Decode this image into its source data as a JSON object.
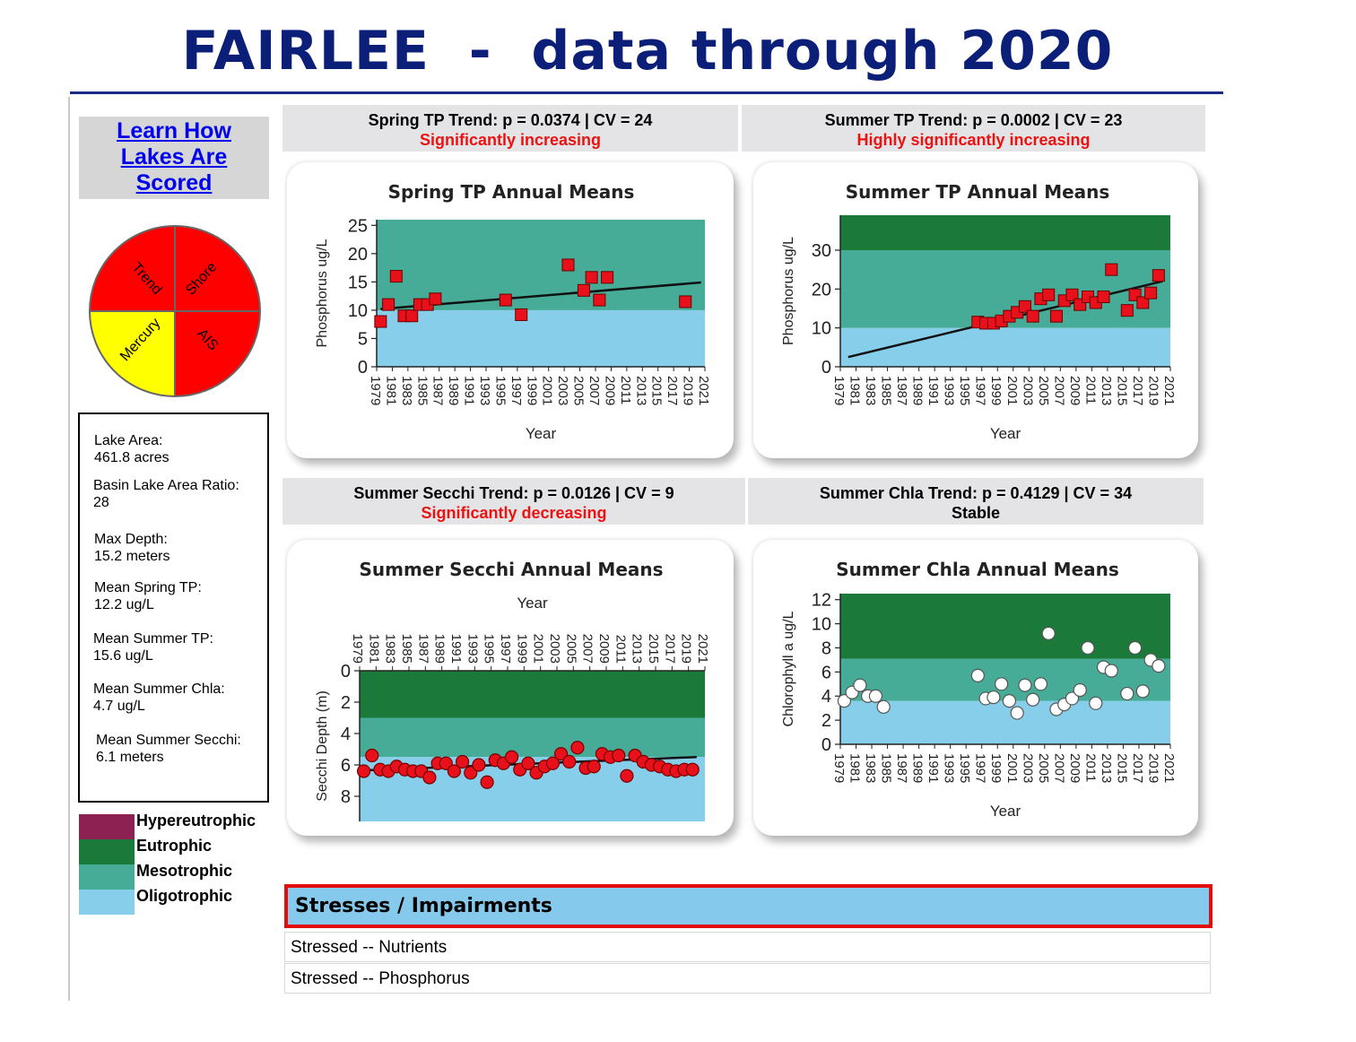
{
  "page": {
    "title": "FAIRLEE  -  data through 2020"
  },
  "learn_link": {
    "lines": [
      "Learn How",
      "Lakes Are",
      "Scored"
    ]
  },
  "score_wheel": [
    {
      "label": "Trend",
      "color": "#ff0000"
    },
    {
      "label": "Shore",
      "color": "#ff0000"
    },
    {
      "label": "AIS",
      "color": "#ff0000"
    },
    {
      "label": "Mercury",
      "color": "#ffff00"
    }
  ],
  "info": [
    {
      "label": "Lake Area:",
      "value": "461.8 acres"
    },
    {
      "label": "Basin Lake Area Ratio:",
      "value": "28"
    },
    {
      "label": "Max Depth:",
      "value": "15.2 meters"
    },
    {
      "label": "Mean Spring TP:",
      "value": "12.2 ug/L"
    },
    {
      "label": "Mean Summer TP:",
      "value": "15.6 ug/L"
    },
    {
      "label": "Mean Summer Chla:",
      "value": "4.7 ug/L"
    },
    {
      "label": "Mean Summer Secchi:",
      "value": "6.1 meters"
    }
  ],
  "legend": [
    {
      "label": "Hypereutrophic",
      "color": "#8b2252"
    },
    {
      "label": "Eutrophic",
      "color": "#1b7a3a"
    },
    {
      "label": "Mesotrophic",
      "color": "#46ab97"
    },
    {
      "label": "Oligotrophic",
      "color": "#87ceeb"
    }
  ],
  "trend_headers": [
    {
      "title": "Spring TP Trend: p = 0.0374 | CV = 24",
      "status": "Significantly increasing",
      "status_color": "#ee1111"
    },
    {
      "title": "Summer TP Trend: p = 0.0002 | CV = 23",
      "status": "Highly significantly increasing",
      "status_color": "#ee1111"
    },
    {
      "title": "Summer Secchi Trend: p = 0.0126 | CV = 9",
      "status": "Significantly decreasing",
      "status_color": "#ee1111"
    },
    {
      "title": "Summer Chla Trend: p = 0.4129 | CV = 34",
      "status": "Stable",
      "status_color": "#000000"
    }
  ],
  "chart_data": [
    {
      "type": "scatter",
      "title": "Spring TP Annual Means",
      "xlabel": "Year",
      "ylabel": "Phosphorus ug/L",
      "xlim": [
        1979,
        2021
      ],
      "ylim": [
        0,
        26
      ],
      "yticks": [
        0,
        5,
        10,
        15,
        20,
        25
      ],
      "xticks": [
        1979,
        1981,
        1983,
        1985,
        1987,
        1989,
        1991,
        1993,
        1995,
        1997,
        1999,
        2001,
        2003,
        2005,
        2007,
        2009,
        2011,
        2013,
        2015,
        2017,
        2019,
        2021
      ],
      "invert_y": false,
      "marker": "square",
      "marker_color": "#e8101a",
      "bands": [
        {
          "from": 0,
          "to": 10,
          "color": "#87ceeb"
        },
        {
          "from": 10,
          "to": 26,
          "color": "#46ab97"
        }
      ],
      "points": [
        [
          1979.5,
          8
        ],
        [
          1980.5,
          11
        ],
        [
          1981.5,
          16
        ],
        [
          1982.5,
          9
        ],
        [
          1983.5,
          9
        ],
        [
          1984.5,
          11
        ],
        [
          1985.5,
          11
        ],
        [
          1986.5,
          12
        ],
        [
          1995.5,
          11.8
        ],
        [
          1997.5,
          9.2
        ],
        [
          2003.5,
          18
        ],
        [
          2005.5,
          13.5
        ],
        [
          2006.5,
          15.8
        ],
        [
          2007.5,
          11.8
        ],
        [
          2008.5,
          15.8
        ],
        [
          2018.5,
          11.5
        ]
      ],
      "trend_line": [
        [
          1979.5,
          10.2
        ],
        [
          2020.5,
          14.9
        ]
      ]
    },
    {
      "type": "scatter",
      "title": "Summer TP Annual Means",
      "xlabel": "Year",
      "ylabel": "Phosphorus ug/L",
      "xlim": [
        1979,
        2021
      ],
      "ylim": [
        0,
        39
      ],
      "yticks": [
        0,
        10,
        20,
        30
      ],
      "xticks": [
        1979,
        1981,
        1983,
        1985,
        1987,
        1989,
        1991,
        1993,
        1995,
        1997,
        1999,
        2001,
        2003,
        2005,
        2007,
        2009,
        2011,
        2013,
        2015,
        2017,
        2019,
        2021
      ],
      "invert_y": false,
      "marker": "square",
      "marker_color": "#e8101a",
      "bands": [
        {
          "from": 0,
          "to": 10,
          "color": "#87ceeb"
        },
        {
          "from": 10,
          "to": 30,
          "color": "#46ab97"
        },
        {
          "from": 30,
          "to": 39,
          "color": "#1b7a3a"
        }
      ],
      "points": [
        [
          1996.5,
          11.5
        ],
        [
          1997.5,
          11.2
        ],
        [
          1998.5,
          11.2
        ],
        [
          1999.5,
          11.8
        ],
        [
          2000.5,
          13
        ],
        [
          2001.5,
          14
        ],
        [
          2002.5,
          15.5
        ],
        [
          2003.5,
          13
        ],
        [
          2004.5,
          17.5
        ],
        [
          2005.5,
          18.5
        ],
        [
          2006.5,
          13
        ],
        [
          2007.5,
          17
        ],
        [
          2008.5,
          18.5
        ],
        [
          2009.5,
          16
        ],
        [
          2010.5,
          18
        ],
        [
          2011.5,
          16.5
        ],
        [
          2012.5,
          18
        ],
        [
          2013.5,
          25
        ],
        [
          2015.5,
          14.5
        ],
        [
          2016.5,
          18.5
        ],
        [
          2017.5,
          16.5
        ],
        [
          2018.5,
          19
        ],
        [
          2019.5,
          23.5
        ]
      ],
      "trend_line": [
        [
          1980,
          2.5
        ],
        [
          2020,
          22
        ]
      ]
    },
    {
      "type": "scatter",
      "title": "Summer Secchi Annual Means",
      "xlabel": "Year",
      "ylabel": "Secchi Depth (m)",
      "xlim": [
        1979,
        2021
      ],
      "ylim": [
        0,
        9.6
      ],
      "yticks": [
        0,
        2,
        4,
        6,
        8
      ],
      "xticks": [
        1979,
        1981,
        1983,
        1985,
        1987,
        1989,
        1991,
        1993,
        1995,
        1997,
        1999,
        2001,
        2003,
        2005,
        2007,
        2009,
        2011,
        2013,
        2015,
        2017,
        2019,
        2021
      ],
      "invert_y": true,
      "marker": "circle",
      "marker_color": "#e8101a",
      "bands": [
        {
          "from": 0,
          "to": 3,
          "color": "#1b7a3a"
        },
        {
          "from": 3,
          "to": 5.5,
          "color": "#46ab97"
        },
        {
          "from": 5.5,
          "to": 9.6,
          "color": "#87ceeb"
        }
      ],
      "points": [
        [
          1979.5,
          6.4
        ],
        [
          1980.5,
          5.4
        ],
        [
          1981.5,
          6.3
        ],
        [
          1982.5,
          6.4
        ],
        [
          1983.5,
          6.1
        ],
        [
          1984.5,
          6.3
        ],
        [
          1985.5,
          6.4
        ],
        [
          1986.5,
          6.4
        ],
        [
          1987.5,
          6.8
        ],
        [
          1988.5,
          5.9
        ],
        [
          1989.5,
          5.9
        ],
        [
          1990.5,
          6.4
        ],
        [
          1991.5,
          5.8
        ],
        [
          1992.5,
          6.5
        ],
        [
          1993.5,
          6.0
        ],
        [
          1994.5,
          7.1
        ],
        [
          1995.5,
          5.7
        ],
        [
          1996.5,
          5.9
        ],
        [
          1997.5,
          5.5
        ],
        [
          1998.5,
          6.3
        ],
        [
          1999.5,
          5.9
        ],
        [
          2000.5,
          6.5
        ],
        [
          2001.5,
          6.1
        ],
        [
          2002.5,
          5.9
        ],
        [
          2003.5,
          5.3
        ],
        [
          2004.5,
          5.8
        ],
        [
          2005.5,
          4.9
        ],
        [
          2006.5,
          6.2
        ],
        [
          2007.5,
          6.1
        ],
        [
          2008.5,
          5.3
        ],
        [
          2009.5,
          5.5
        ],
        [
          2010.5,
          5.4
        ],
        [
          2011.5,
          6.7
        ],
        [
          2012.5,
          5.4
        ],
        [
          2013.5,
          5.8
        ],
        [
          2014.5,
          6.0
        ],
        [
          2015.5,
          6.1
        ],
        [
          2016.5,
          6.3
        ],
        [
          2017.5,
          6.4
        ],
        [
          2018.5,
          6.3
        ],
        [
          2019.5,
          6.3
        ]
      ],
      "trend_line": [
        [
          1979.5,
          6.35
        ],
        [
          2020,
          5.5
        ]
      ]
    },
    {
      "type": "scatter",
      "title": "Summer Chla Annual Means",
      "xlabel": "Year",
      "ylabel": "Chlorophyll a ug/L",
      "xlim": [
        1979,
        2021
      ],
      "ylim": [
        0,
        12.5
      ],
      "yticks": [
        0,
        2,
        4,
        6,
        8,
        10,
        12
      ],
      "xticks": [
        1979,
        1981,
        1983,
        1985,
        1987,
        1989,
        1991,
        1993,
        1995,
        1997,
        1999,
        2001,
        2003,
        2005,
        2007,
        2009,
        2011,
        2013,
        2015,
        2017,
        2019,
        2021
      ],
      "invert_y": false,
      "marker": "circle",
      "marker_color": "#ffffff",
      "bands": [
        {
          "from": 0,
          "to": 3.6,
          "color": "#87ceeb"
        },
        {
          "from": 3.6,
          "to": 7.1,
          "color": "#46ab97"
        },
        {
          "from": 7.1,
          "to": 12.5,
          "color": "#1b7a3a"
        }
      ],
      "points": [
        [
          1979.5,
          3.6
        ],
        [
          1980.5,
          4.3
        ],
        [
          1981.5,
          4.9
        ],
        [
          1982.5,
          4.0
        ],
        [
          1983.5,
          4.0
        ],
        [
          1984.5,
          3.1
        ],
        [
          1996.5,
          5.7
        ],
        [
          1997.5,
          3.8
        ],
        [
          1998.5,
          3.9
        ],
        [
          1999.5,
          5.0
        ],
        [
          2000.5,
          3.6
        ],
        [
          2001.5,
          2.6
        ],
        [
          2002.5,
          4.9
        ],
        [
          2003.5,
          3.7
        ],
        [
          2004.5,
          5.0
        ],
        [
          2005.5,
          9.2
        ],
        [
          2006.5,
          2.9
        ],
        [
          2007.5,
          3.3
        ],
        [
          2008.5,
          3.8
        ],
        [
          2009.5,
          4.5
        ],
        [
          2010.5,
          8.0
        ],
        [
          2011.5,
          3.4
        ],
        [
          2012.5,
          6.4
        ],
        [
          2013.5,
          6.1
        ],
        [
          2015.5,
          4.2
        ],
        [
          2016.5,
          8.0
        ],
        [
          2017.5,
          4.4
        ],
        [
          2018.5,
          7.0
        ],
        [
          2019.5,
          6.5
        ]
      ],
      "trend_line": []
    }
  ],
  "stresses": {
    "title": "Stresses / Impairments",
    "rows": [
      "Stressed -- Nutrients",
      "Stressed -- Phosphorus"
    ]
  }
}
